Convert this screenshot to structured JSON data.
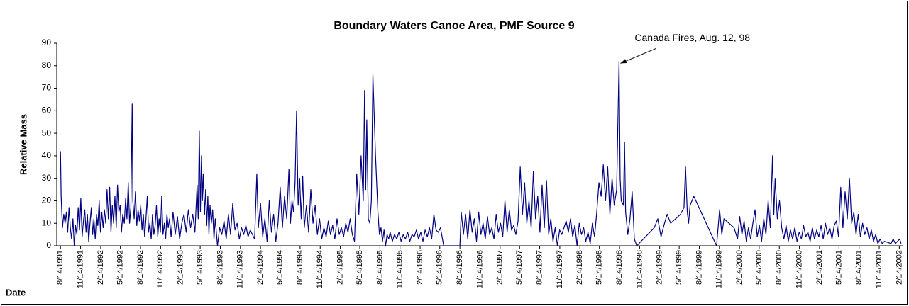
{
  "chart_data": {
    "type": "line",
    "title": "Boundary Waters Canoe Area, PMF Source 9",
    "y_label": "Relative Mass",
    "x_label": "Date",
    "annotation": {
      "text": "Canada Fires, Aug. 12, 98",
      "x": "8/12/1998",
      "y": 82
    },
    "xlim": [
      "7/28/1991",
      "3/1/2002"
    ],
    "xticks": [
      "8/14/1991",
      "11/14/1991",
      "2/14/1992",
      "5/14/1992",
      "8/14/1992",
      "11/14/1992",
      "2/14/1993",
      "5/14/1993",
      "8/14/1993",
      "11/14/1993",
      "2/14/1994",
      "5/14/1994",
      "8/14/1994",
      "11/14/1994",
      "2/14/1995",
      "5/14/1995",
      "8/14/1995",
      "11/14/1995",
      "2/14/1996",
      "5/14/1996",
      "8/14/1996",
      "11/14/1996",
      "2/14/1997",
      "5/14/1997",
      "8/14/1997",
      "11/14/1997",
      "2/14/1998",
      "5/14/1998",
      "8/14/1998",
      "11/14/1998",
      "2/14/1999",
      "5/14/1999",
      "8/14/1999",
      "11/14/1999",
      "2/14/2000",
      "5/14/2000",
      "8/14/2000",
      "11/14/2000",
      "2/14/2001",
      "5/14/2001",
      "8/14/2001",
      "11/14/2001",
      "2/14/2002"
    ],
    "ylim": [
      0,
      90
    ],
    "yticks": [
      0,
      10,
      20,
      30,
      40,
      50,
      60,
      70,
      80,
      90
    ],
    "grid": false,
    "series": [
      {
        "name": "PMF Source 9",
        "color": "#000080",
        "x": [
          "8/14/1991",
          "8/17/1991",
          "8/23/1991",
          "8/29/1991",
          "9/4/1991",
          "9/10/1991",
          "9/16/1991",
          "9/22/1991",
          "9/28/1991",
          "10/4/1991",
          "10/10/1991",
          "10/16/1991",
          "10/22/1991",
          "10/28/1991",
          "11/3/1991",
          "11/9/1991",
          "11/15/1991",
          "11/21/1991",
          "11/27/1991",
          "12/3/1991",
          "12/9/1991",
          "12/15/1991",
          "12/21/1991",
          "12/27/1991",
          "1/2/1992",
          "1/8/1992",
          "1/14/1992",
          "1/20/1992",
          "1/26/1992",
          "2/1/1992",
          "2/7/1992",
          "2/13/1992",
          "2/19/1992",
          "2/25/1992",
          "3/2/1992",
          "3/8/1992",
          "3/14/1992",
          "3/20/1992",
          "3/26/1992",
          "4/1/1992",
          "4/7/1992",
          "4/13/1992",
          "4/19/1992",
          "4/25/1992",
          "5/1/1992",
          "5/7/1992",
          "5/13/1992",
          "5/19/1992",
          "5/25/1992",
          "6/1/1992",
          "6/7/1992",
          "6/13/1992",
          "6/19/1992",
          "6/25/1992",
          "7/1/1992",
          "7/7/1992",
          "7/10/1992",
          "7/16/1992",
          "7/22/1992",
          "7/28/1992",
          "8/3/1992",
          "8/9/1992",
          "8/15/1992",
          "8/21/1992",
          "8/27/1992",
          "9/2/1992",
          "9/8/1992",
          "9/14/1992",
          "9/20/1992",
          "9/26/1992",
          "10/2/1992",
          "10/8/1992",
          "10/14/1992",
          "10/20/1992",
          "10/26/1992",
          "11/1/1992",
          "11/7/1992",
          "11/13/1992",
          "11/19/1992",
          "11/25/1992",
          "12/1/1992",
          "12/7/1992",
          "12/13/1992",
          "12/19/1992",
          "12/25/1992",
          "1/1/1993",
          "1/10/1993",
          "1/20/1993",
          "1/30/1993",
          "2/9/1993",
          "2/19/1993",
          "3/1/1993",
          "3/11/1993",
          "3/21/1993",
          "3/31/1993",
          "4/10/1993",
          "4/20/1993",
          "4/30/1993",
          "5/5/1993",
          "5/10/1993",
          "5/15/1993",
          "5/20/1993",
          "5/24/1993",
          "5/28/1993",
          "6/3/1993",
          "6/8/1993",
          "6/13/1993",
          "6/18/1993",
          "6/23/1993",
          "6/28/1993",
          "7/4/1993",
          "7/10/1993",
          "7/16/1993",
          "7/22/1993",
          "8/1/1993",
          "8/11/1993",
          "8/21/1993",
          "8/31/1993",
          "9/10/1993",
          "9/20/1993",
          "9/30/1993",
          "10/10/1993",
          "10/20/1993",
          "10/30/1993",
          "11/9/1993",
          "11/19/1993",
          "11/29/1993",
          "12/9/1993",
          "12/19/1993",
          "12/29/1993",
          "1/8/1994",
          "1/18/1994",
          "1/28/1994",
          "2/4/1994",
          "2/14/1994",
          "2/24/1994",
          "3/6/1994",
          "3/16/1994",
          "3/26/1994",
          "4/5/1994",
          "4/15/1994",
          "4/25/1994",
          "5/5/1994",
          "5/15/1994",
          "5/25/1994",
          "6/4/1994",
          "6/14/1994",
          "6/24/1994",
          "7/1/1994",
          "7/8/1994",
          "7/15/1994",
          "7/22/1994",
          "7/29/1994",
          "8/5/1994",
          "8/12/1994",
          "8/19/1994",
          "8/26/1994",
          "9/2/1994",
          "9/12/1994",
          "9/22/1994",
          "10/2/1994",
          "10/12/1994",
          "10/22/1994",
          "11/1/1994",
          "11/11/1994",
          "11/21/1994",
          "12/1/1994",
          "12/11/1994",
          "12/21/1994",
          "12/31/1994",
          "1/10/1995",
          "1/20/1995",
          "1/30/1995",
          "2/9/1995",
          "2/19/1995",
          "3/1/1995",
          "3/11/1995",
          "3/21/1995",
          "3/31/1995",
          "4/10/1995",
          "4/20/1995",
          "4/30/1995",
          "5/10/1995",
          "5/20/1995",
          "5/30/1995",
          "6/5/1995",
          "6/10/1995",
          "6/15/1995",
          "6/22/1995",
          "6/29/1995",
          "7/6/1995",
          "7/13/1995",
          "7/25/1995",
          "8/5/1995",
          "8/12/1995",
          "8/19/1995",
          "8/26/1995",
          "9/2/1995",
          "9/9/1995",
          "9/16/1995",
          "9/23/1995",
          "9/30/1995",
          "10/10/1995",
          "10/20/1995",
          "10/30/1995",
          "11/9/1995",
          "11/19/1995",
          "11/29/1995",
          "12/9/1995",
          "12/19/1995",
          "12/29/1995",
          "1/8/1996",
          "1/18/1996",
          "1/28/1996",
          "2/7/1996",
          "2/17/1996",
          "2/27/1996",
          "3/8/1996",
          "3/18/1996",
          "3/28/1996",
          "4/7/1996",
          "4/17/1996",
          "4/27/1996",
          "5/7/1996",
          "5/17/1996",
          "6/1/1996",
          "8/14/1996",
          "8/20/1996",
          "8/30/1996",
          "9/9/1996",
          "9/19/1996",
          "9/29/1996",
          "10/9/1996",
          "10/19/1996",
          "10/29/1996",
          "11/8/1996",
          "11/18/1996",
          "11/28/1996",
          "12/8/1996",
          "12/18/1996",
          "12/28/1996",
          "1/7/1997",
          "1/17/1997",
          "1/27/1997",
          "2/6/1997",
          "2/16/1997",
          "2/26/1997",
          "3/8/1997",
          "3/18/1997",
          "3/28/1997",
          "4/7/1997",
          "4/17/1997",
          "4/27/1997",
          "5/7/1997",
          "5/17/1997",
          "5/27/1997",
          "6/6/1997",
          "6/16/1997",
          "6/26/1997",
          "7/6/1997",
          "7/16/1997",
          "7/26/1997",
          "8/5/1997",
          "8/15/1997",
          "8/25/1997",
          "9/4/1997",
          "9/14/1997",
          "9/24/1997",
          "10/4/1997",
          "10/14/1997",
          "10/24/1997",
          "11/3/1997",
          "11/13/1997",
          "11/23/1997",
          "12/3/1997",
          "12/13/1997",
          "12/23/1997",
          "1/2/1998",
          "1/12/1998",
          "1/22/1998",
          "2/1/1998",
          "2/11/1998",
          "2/21/1998",
          "3/3/1998",
          "3/13/1998",
          "3/23/1998",
          "4/2/1998",
          "4/12/1998",
          "4/22/1998",
          "5/2/1998",
          "5/12/1998",
          "5/22/1998",
          "6/1/1998",
          "6/11/1998",
          "6/21/1998",
          "7/1/1998",
          "7/11/1998",
          "7/21/1998",
          "8/1/1998",
          "8/12/1998",
          "8/17/1998",
          "8/22/1998",
          "9/1/1998",
          "9/6/1998",
          "9/11/1998",
          "9/21/1998",
          "10/1/1998",
          "10/11/1998",
          "10/21/1998",
          "11/1/1998",
          "1/20/1999",
          "2/5/1999",
          "2/20/1999",
          "3/5/1999",
          "3/20/1999",
          "4/5/1999",
          "5/20/1999",
          "6/5/1999",
          "6/12/1999",
          "6/20/1999",
          "6/26/1999",
          "7/3/1999",
          "7/20/1999",
          "11/1/1999",
          "11/15/1999",
          "11/25/1999",
          "12/5/1999",
          "1/20/2000",
          "2/5/2000",
          "2/15/2000",
          "2/25/2000",
          "3/6/2000",
          "3/16/2000",
          "3/26/2000",
          "4/5/2000",
          "4/15/2000",
          "4/25/2000",
          "5/5/2000",
          "5/15/2000",
          "5/25/2000",
          "6/4/2000",
          "6/14/2000",
          "6/24/2000",
          "7/4/2000",
          "7/14/2000",
          "7/20/2000",
          "7/26/2000",
          "8/5/2000",
          "8/15/2000",
          "8/25/2000",
          "9/4/2000",
          "9/14/2000",
          "9/24/2000",
          "10/4/2000",
          "10/14/2000",
          "10/24/2000",
          "11/3/2000",
          "11/13/2000",
          "11/23/2000",
          "12/3/2000",
          "12/13/2000",
          "12/23/2000",
          "1/2/2001",
          "1/12/2001",
          "1/22/2001",
          "2/1/2001",
          "2/11/2001",
          "2/21/2001",
          "3/3/2001",
          "3/13/2001",
          "3/23/2001",
          "4/2/2001",
          "4/12/2001",
          "4/22/2001",
          "5/2/2001",
          "5/12/2001",
          "5/22/2001",
          "6/1/2001",
          "6/11/2001",
          "6/21/2001",
          "7/1/2001",
          "7/11/2001",
          "7/21/2001",
          "7/31/2001",
          "8/10/2001",
          "8/20/2001",
          "8/30/2001",
          "9/9/2001",
          "9/19/2001",
          "9/29/2001",
          "10/9/2001",
          "10/19/2001",
          "10/29/2001",
          "11/8/2001",
          "11/18/2001",
          "11/28/2001",
          "12/8/2001",
          "1/7/2002",
          "1/17/2002",
          "1/27/2002",
          "2/6/2002",
          "2/16/2002",
          "2/22/2002"
        ],
        "values": [
          42,
          22,
          8,
          14,
          10,
          15,
          6,
          17,
          8,
          3,
          12,
          0,
          9,
          5,
          17,
          7,
          21,
          4,
          11,
          16,
          6,
          14,
          2,
          10,
          17,
          5,
          12,
          3,
          14,
          9,
          20,
          6,
          15,
          8,
          16,
          10,
          25,
          12,
          26,
          6,
          18,
          10,
          22,
          8,
          27,
          15,
          18,
          6,
          14,
          10,
          21,
          12,
          28,
          10,
          17,
          63,
          20,
          12,
          24,
          9,
          16,
          11,
          18,
          7,
          14,
          4,
          12,
          22,
          6,
          10,
          3,
          14,
          5,
          9,
          18,
          4,
          12,
          6,
          22,
          5,
          10,
          3,
          14,
          8,
          12,
          4,
          15,
          5,
          13,
          3,
          10,
          14,
          6,
          16,
          8,
          14,
          6,
          27,
          12,
          51,
          15,
          40,
          20,
          32,
          14,
          25,
          9,
          22,
          5,
          18,
          10,
          16,
          3,
          12,
          0,
          8,
          5,
          11,
          3,
          14,
          5,
          19,
          7,
          10,
          3,
          8,
          5,
          9,
          4,
          7,
          5,
          3,
          32,
          8,
          19,
          4,
          12,
          2,
          20,
          6,
          14,
          2,
          10,
          26,
          8,
          22,
          12,
          34,
          10,
          20,
          15,
          28,
          60,
          18,
          30,
          12,
          31,
          8,
          18,
          6,
          25,
          10,
          18,
          5,
          12,
          3,
          8,
          4,
          11,
          5,
          9,
          3,
          12,
          5,
          8,
          4,
          10,
          6,
          12,
          5,
          2,
          32,
          14,
          40,
          20,
          69,
          25,
          56,
          12,
          10,
          20,
          76,
          40,
          15,
          5,
          8,
          2,
          7,
          0,
          5,
          3,
          6,
          2,
          5,
          3,
          6,
          2,
          5,
          3,
          6,
          2,
          5,
          4,
          7,
          3,
          6,
          2,
          7,
          4,
          8,
          3,
          14,
          7,
          6,
          8,
          0,
          0,
          15,
          5,
          14,
          3,
          16,
          6,
          12,
          2,
          15,
          5,
          10,
          3,
          13,
          5,
          8,
          3,
          14,
          6,
          10,
          4,
          20,
          6,
          16,
          7,
          9,
          5,
          11,
          35,
          14,
          28,
          10,
          20,
          8,
          33,
          12,
          22,
          6,
          27,
          8,
          29,
          5,
          12,
          2,
          8,
          0,
          7,
          5,
          8,
          11,
          6,
          12,
          4,
          9,
          0,
          10,
          5,
          8,
          2,
          6,
          1,
          10,
          4,
          15,
          28,
          22,
          36,
          20,
          35,
          14,
          30,
          18,
          25,
          82,
          30,
          20,
          18,
          46,
          15,
          5,
          12,
          24,
          3,
          0,
          8,
          12,
          4,
          9,
          14,
          10,
          14,
          17,
          35,
          15,
          10,
          18,
          22,
          0,
          16,
          5,
          12,
          8,
          3,
          13,
          5,
          11,
          2,
          8,
          3,
          10,
          16,
          4,
          9,
          2,
          12,
          5,
          20,
          8,
          40,
          14,
          30,
          12,
          20,
          8,
          3,
          9,
          2,
          7,
          3,
          8,
          2,
          6,
          3,
          9,
          4,
          6,
          2,
          8,
          3,
          7,
          4,
          9,
          3,
          10,
          5,
          8,
          3,
          9,
          11,
          4,
          26,
          8,
          24,
          12,
          30,
          10,
          15,
          5,
          14,
          4,
          10,
          5,
          8,
          3,
          7,
          2,
          5,
          1,
          3,
          1,
          2,
          1,
          3,
          1,
          2,
          3,
          1
        ]
      }
    ]
  }
}
